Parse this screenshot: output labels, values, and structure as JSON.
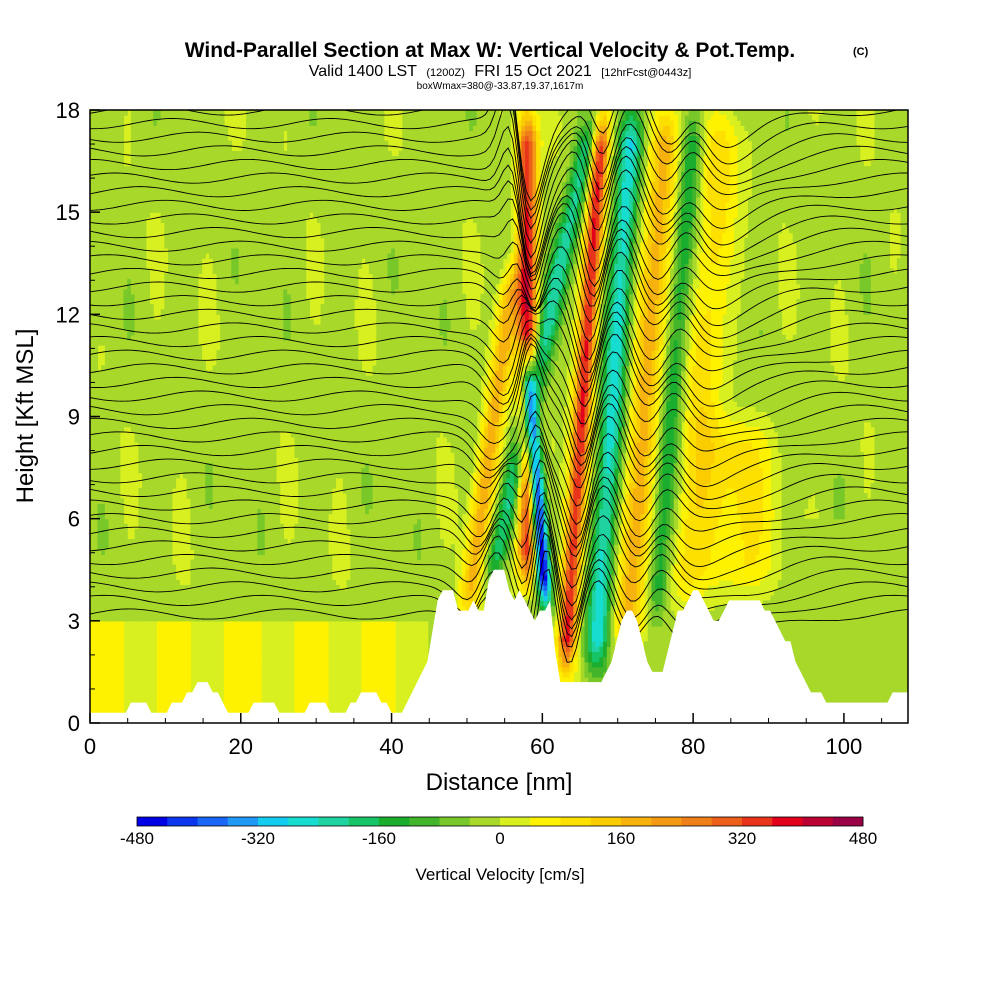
{
  "header": {
    "title": "Wind-Parallel Section at Max W: Vertical Velocity & Pot.Temp.",
    "title_suffix": "(C)",
    "valid_prefix": "Valid 1400 LST",
    "valid_z": "(1200Z)",
    "valid_date": "FRI 15 Oct 2021",
    "valid_fcst": "[12hrFcst@0443z]",
    "box_info": "boxWmax=380@-33.87,19.37,1617m"
  },
  "chart_data": {
    "type": "heatmap",
    "title": "Wind-Parallel Section at Max W: Vertical Velocity & Pot.Temp.",
    "xlabel": "Distance [nm]",
    "ylabel": "Height [Kft MSL]",
    "xlim": [
      0,
      108.5
    ],
    "ylim": [
      0,
      18
    ],
    "xticks": [
      0,
      20,
      40,
      60,
      80,
      100
    ],
    "yticks": [
      0,
      3,
      6,
      9,
      12,
      15,
      18
    ],
    "xtick_labels": [
      "0",
      "20",
      "40",
      "60",
      "80",
      "100"
    ],
    "ytick_labels": [
      "0",
      "3",
      "6",
      "9",
      "12",
      "15",
      "18"
    ],
    "terrain": {
      "x_nm": [
        0,
        4,
        6,
        9,
        12,
        14,
        15,
        17,
        18,
        20,
        23,
        26,
        28,
        30,
        33,
        35,
        37,
        39,
        41,
        42,
        43,
        45,
        46,
        47,
        48,
        49,
        50,
        51,
        52,
        53,
        54,
        55,
        56,
        57,
        58,
        59,
        60,
        61,
        62,
        63,
        64,
        65,
        66,
        67,
        68,
        69,
        70,
        71,
        72,
        73,
        74,
        75,
        76,
        77,
        78,
        79,
        80,
        81,
        82,
        83,
        84,
        85,
        86,
        87,
        88,
        89,
        90,
        91,
        92,
        93,
        94,
        96,
        98,
        100,
        104,
        108.5
      ],
      "height_kft": [
        0.3,
        0.3,
        0.6,
        0.3,
        0.6,
        1.0,
        1.3,
        0.9,
        0.3,
        0.3,
        0.6,
        0.3,
        0.3,
        0.6,
        0.3,
        0.6,
        1.0,
        0.6,
        0.3,
        0.6,
        1.0,
        2.0,
        3.5,
        3.9,
        3.9,
        3.0,
        3.3,
        3.6,
        3.0,
        4.2,
        4.5,
        4.5,
        3.6,
        3.9,
        3.6,
        3.0,
        3.3,
        3.6,
        1.3,
        1.3,
        1.3,
        1.3,
        1.3,
        1.3,
        1.3,
        1.6,
        2.6,
        3.3,
        3.3,
        2.6,
        1.6,
        1.3,
        1.6,
        2.3,
        3.3,
        3.3,
        3.9,
        3.9,
        3.3,
        3.0,
        3.3,
        3.6,
        3.6,
        3.6,
        3.6,
        3.6,
        3.3,
        3.0,
        2.6,
        2.3,
        1.6,
        0.9,
        0.6,
        0.6,
        0.6,
        0.9
      ]
    },
    "colorbar": {
      "title": "Vertical Velocity [cm/s]",
      "ticks": [
        -480,
        -320,
        -160,
        0,
        160,
        320,
        480
      ],
      "tick_labels": [
        "-480",
        "-320",
        "-160",
        "0",
        "160",
        "320",
        "480"
      ],
      "colors": [
        "#0000e6",
        "#0b36ee",
        "#1a66f5",
        "#1f99f5",
        "#14ccf0",
        "#17dcd0",
        "#1fd3a0",
        "#16c466",
        "#1aad2e",
        "#43b52a",
        "#78c82a",
        "#a8d82a",
        "#d8f020",
        "#fff200",
        "#fde000",
        "#fbcc00",
        "#f7b20e",
        "#f39a12",
        "#ef7f18",
        "#ec5e1a",
        "#e8341a",
        "#e3001a",
        "#bb0032",
        "#9a0046"
      ]
    },
    "velocity_features": [
      {
        "x_nm": 50,
        "z_bottom_kft": 3,
        "z_top_kft": 13.5,
        "lean": 0.6,
        "value_cm_s": 200,
        "width_nm": 1.5
      },
      {
        "x_nm": 53,
        "z_bottom_kft": 4,
        "z_top_kft": 18,
        "lean": 1.0,
        "value_cm_s": -200,
        "width_nm": 1.5
      },
      {
        "x_nm": 58,
        "z_bottom_kft": 4,
        "z_top_kft": 18,
        "lean": 0.0,
        "value_cm_s": 380,
        "width_nm": 1.3
      },
      {
        "x_nm": 60.5,
        "z_bottom_kft": 3.3,
        "z_top_kft": 11,
        "lean": -0.35,
        "value_cm_s": -480,
        "width_nm": 1.0
      },
      {
        "x_nm": 63,
        "z_bottom_kft": 1.5,
        "z_top_kft": 18,
        "lean": 0.3,
        "value_cm_s": 380,
        "width_nm": 1.2
      },
      {
        "x_nm": 67,
        "z_bottom_kft": 1.5,
        "z_top_kft": 18,
        "lean": 0.3,
        "value_cm_s": -250,
        "width_nm": 1.6
      },
      {
        "x_nm": 71,
        "z_bottom_kft": 2,
        "z_top_kft": 18,
        "lean": 0.35,
        "value_cm_s": 200,
        "width_nm": 2.0
      },
      {
        "x_nm": 75,
        "z_bottom_kft": 3,
        "z_top_kft": 18,
        "lean": 0.35,
        "value_cm_s": -150,
        "width_nm": 1.4
      },
      {
        "x_nm": 79,
        "z_bottom_kft": 3.5,
        "z_top_kft": 18,
        "lean": 0.35,
        "value_cm_s": 120,
        "width_nm": 2.5
      },
      {
        "x_nm": 86,
        "z_bottom_kft": 3.6,
        "z_top_kft": 9,
        "lean": 0.0,
        "value_cm_s": 110,
        "width_nm": 4.5
      }
    ]
  }
}
